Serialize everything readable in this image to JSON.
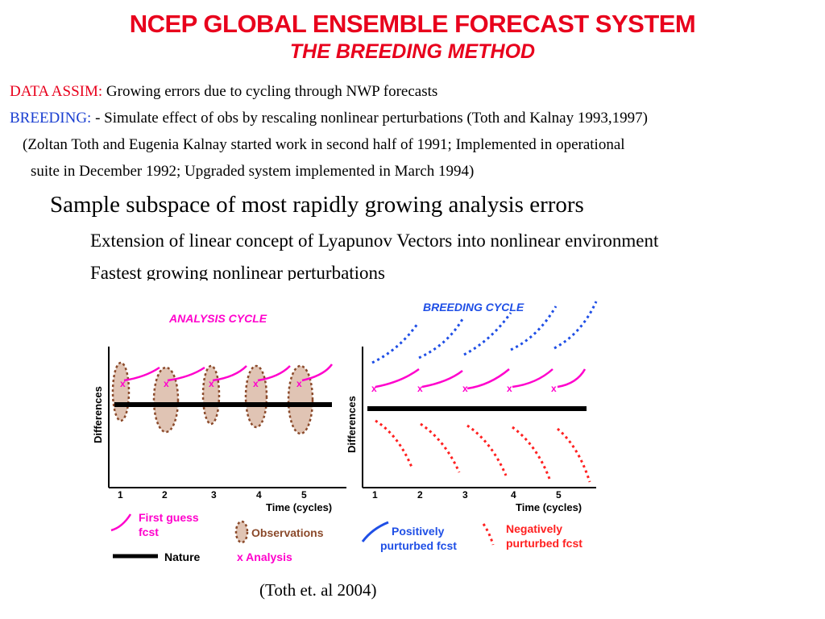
{
  "title": "NCEP GLOBAL ENSEMBLE FORECAST SYSTEM",
  "subtitle": "THE BREEDING METHOD",
  "data_assim": {
    "label": "DATA ASSIM:",
    "text": " Growing errors due to cycling through NWP forecasts"
  },
  "breeding": {
    "label": "BREEDING:",
    "text": " - Simulate effect of obs by rescaling nonlinear perturbations  (Toth and Kalnay 1993,1997)"
  },
  "note_line1": "(Zoltan Toth and Eugenia Kalnay  started work in second half of 1991;  Implemented in operational",
  "note_line2": "suite in December 1992;  Upgraded system implemented in March 1994)",
  "bullet_main": "Sample subspace of most rapidly growing analysis errors",
  "sub_bullets": [
    "Extension of linear concept of Lyapunov Vectors into nonlinear environment",
    "Fastest growing nonlinear perturbations"
  ],
  "figure": {
    "analysis_panel": {
      "title": "ANALYSIS CYCLE",
      "ylabel": "Differences",
      "xlabel": "Time  (cycles)",
      "ticks": [
        "1",
        "2",
        "3",
        "4",
        "5"
      ],
      "marker": "x"
    },
    "breeding_panel": {
      "title": "BREEDING CYCLE",
      "ylabel": "Differences",
      "xlabel": "Time  (cycles)",
      "ticks": [
        "1",
        "2",
        "3",
        "4",
        "5"
      ],
      "marker": "x"
    },
    "legend": {
      "first_guess_1": "First guess",
      "first_guess_2": "fcst",
      "observations": "Observations",
      "nature": "Nature",
      "analysis": "x Analysis",
      "positive_1": "Positively",
      "positive_2": "purturbed fcst",
      "negative_1": "Negatively",
      "negative_2": "purturbed fcst"
    },
    "colors": {
      "title_red": "#e8001c",
      "label_blue": "#1a3fd1",
      "analysis_title": "#ff00cc",
      "first_guess": "#ff00cc",
      "observations_fill": "#e0c4b4",
      "observations_stroke": "#8b4a2b",
      "nature": "#000000",
      "positive": "#1f4fe6",
      "negative": "#ff2020"
    }
  },
  "citation": "(Toth et. al 2004)"
}
